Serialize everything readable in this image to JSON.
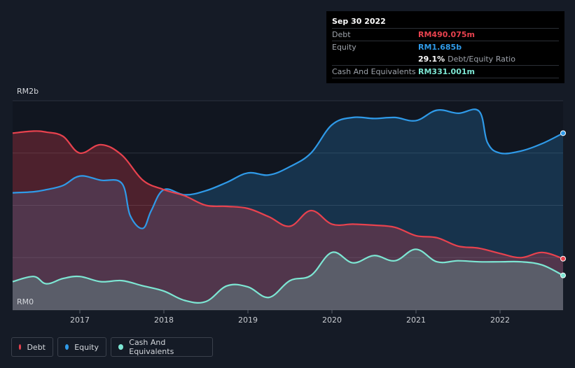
{
  "tooltip": {
    "date": "Sep 30 2022",
    "rows": [
      {
        "label": "Debt",
        "value": "RM490.075m",
        "color": "#e8424e"
      },
      {
        "label": "Equity",
        "value": "RM1.685b",
        "color": "#2f9ae8"
      },
      {
        "label": "",
        "value": "29.1%",
        "sub": "Debt/Equity Ratio",
        "color": "#ffffff"
      },
      {
        "label": "Cash And Equivalents",
        "value": "RM331.001m",
        "color": "#7de6d3"
      }
    ]
  },
  "legend": {
    "debt": "Debt",
    "equity": "Equity",
    "cash": "Cash And Equivalents"
  },
  "colors": {
    "debt": "#e8424e",
    "equity": "#2f9ae8",
    "cash": "#7de6d3",
    "background": "#151b26"
  },
  "chart_data": {
    "type": "area",
    "y_unit": "RM",
    "y_tick_labels": [
      "RM0",
      "RM2b"
    ],
    "ylim": [
      0,
      2.0
    ],
    "xlim": [
      2016.2,
      2022.75
    ],
    "x_tick_labels": [
      "2017",
      "2018",
      "2019",
      "2020",
      "2021",
      "2022"
    ],
    "x_ticks": [
      2017,
      2018,
      2019,
      2020,
      2021,
      2022
    ],
    "grid": true,
    "legend_position": "bottom-left",
    "series": [
      {
        "name": "Debt",
        "x": [
          2016.2,
          2016.45,
          2016.6,
          2016.8,
          2017.0,
          2017.25,
          2017.5,
          2017.75,
          2018.0,
          2018.25,
          2018.5,
          2018.75,
          2019.0,
          2019.25,
          2019.5,
          2019.75,
          2020.0,
          2020.25,
          2020.5,
          2020.75,
          2021.0,
          2021.25,
          2021.5,
          2021.75,
          2022.0,
          2022.25,
          2022.5,
          2022.75
        ],
        "values": [
          1.69,
          1.71,
          1.7,
          1.66,
          1.5,
          1.58,
          1.48,
          1.24,
          1.15,
          1.09,
          1.0,
          0.99,
          0.97,
          0.89,
          0.8,
          0.95,
          0.82,
          0.82,
          0.81,
          0.79,
          0.71,
          0.69,
          0.61,
          0.59,
          0.54,
          0.5,
          0.55,
          0.49
        ]
      },
      {
        "name": "Equity",
        "x": [
          2016.2,
          2016.45,
          2016.6,
          2016.8,
          2017.0,
          2017.25,
          2017.5,
          2017.6,
          2017.75,
          2017.85,
          2018.0,
          2018.25,
          2018.5,
          2018.75,
          2019.0,
          2019.25,
          2019.5,
          2019.75,
          2020.0,
          2020.25,
          2020.5,
          2020.75,
          2021.0,
          2021.25,
          2021.5,
          2021.75,
          2021.85,
          2022.0,
          2022.25,
          2022.5,
          2022.75
        ],
        "values": [
          1.12,
          1.13,
          1.15,
          1.19,
          1.28,
          1.24,
          1.21,
          0.9,
          0.78,
          0.95,
          1.15,
          1.1,
          1.14,
          1.22,
          1.31,
          1.29,
          1.37,
          1.5,
          1.77,
          1.84,
          1.83,
          1.84,
          1.81,
          1.91,
          1.88,
          1.9,
          1.6,
          1.5,
          1.52,
          1.59,
          1.69
        ]
      },
      {
        "name": "Cash And Equivalents",
        "x": [
          2016.2,
          2016.45,
          2016.6,
          2016.8,
          2017.0,
          2017.25,
          2017.5,
          2017.75,
          2018.0,
          2018.25,
          2018.5,
          2018.75,
          2019.0,
          2019.25,
          2019.5,
          2019.75,
          2020.0,
          2020.25,
          2020.5,
          2020.75,
          2021.0,
          2021.25,
          2021.5,
          2021.75,
          2022.0,
          2022.25,
          2022.5,
          2022.75
        ],
        "values": [
          0.27,
          0.32,
          0.25,
          0.3,
          0.32,
          0.27,
          0.28,
          0.23,
          0.18,
          0.09,
          0.08,
          0.23,
          0.22,
          0.12,
          0.28,
          0.33,
          0.55,
          0.45,
          0.52,
          0.47,
          0.58,
          0.46,
          0.47,
          0.46,
          0.46,
          0.46,
          0.43,
          0.33
        ]
      }
    ]
  }
}
